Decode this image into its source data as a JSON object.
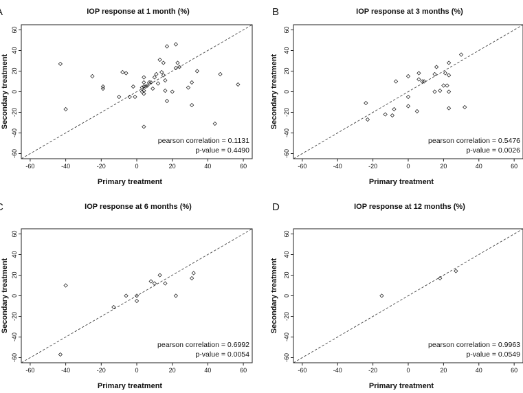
{
  "chart_data": [
    {
      "type": "scatter",
      "panel_label": "A",
      "title": "IOP response at 1 month (%)",
      "xlabel": "Primary treatment",
      "ylabel": "Secondary treatment",
      "xlim": [
        -65,
        65
      ],
      "ylim": [
        -65,
        65
      ],
      "xticks": [
        "-60",
        "-40",
        "-20",
        "0",
        "20",
        "40",
        "60"
      ],
      "yticks": [
        "-60",
        "-40",
        "-20",
        "0",
        "20",
        "40",
        "60"
      ],
      "reference_line": "identity (y = x), dashed",
      "annotation": [
        "pearson correlation = 0.1131",
        "p-value = 0.4490"
      ],
      "points": [
        [
          -43,
          27
        ],
        [
          -40,
          -17
        ],
        [
          -25,
          15
        ],
        [
          -19,
          5
        ],
        [
          -19,
          3
        ],
        [
          -10,
          -5
        ],
        [
          -8,
          19
        ],
        [
          -6,
          18
        ],
        [
          -4,
          -5
        ],
        [
          -2,
          5
        ],
        [
          -1,
          -5
        ],
        [
          3,
          4
        ],
        [
          3,
          0
        ],
        [
          4,
          14
        ],
        [
          4,
          9
        ],
        [
          4,
          5
        ],
        [
          4,
          1
        ],
        [
          4,
          -2
        ],
        [
          4,
          -34
        ],
        [
          5,
          5
        ],
        [
          6,
          6
        ],
        [
          7,
          9
        ],
        [
          8,
          9
        ],
        [
          9,
          3
        ],
        [
          10,
          14
        ],
        [
          11,
          17
        ],
        [
          12,
          8
        ],
        [
          13,
          31
        ],
        [
          14,
          19
        ],
        [
          15,
          28
        ],
        [
          15,
          16
        ],
        [
          16,
          11
        ],
        [
          16,
          1
        ],
        [
          17,
          -9
        ],
        [
          17,
          44
        ],
        [
          20,
          0
        ],
        [
          22,
          46
        ],
        [
          22,
          23
        ],
        [
          23,
          28
        ],
        [
          24,
          24
        ],
        [
          29,
          4
        ],
        [
          31,
          9
        ],
        [
          31,
          -13
        ],
        [
          34,
          20
        ],
        [
          44,
          -31
        ],
        [
          47,
          17
        ],
        [
          57,
          7
        ]
      ]
    },
    {
      "type": "scatter",
      "panel_label": "B",
      "title": "IOP response at 3 months (%)",
      "xlabel": "Primary treatment",
      "ylabel": "Secondary treatment",
      "xlim": [
        -65,
        65
      ],
      "ylim": [
        -65,
        65
      ],
      "xticks": [
        "-60",
        "-40",
        "-20",
        "0",
        "20",
        "40",
        "60"
      ],
      "yticks": [
        "-60",
        "-40",
        "-20",
        "0",
        "20",
        "40",
        "60"
      ],
      "reference_line": "identity (y = x), dashed",
      "annotation": [
        "pearson correlation = 0.5476",
        "p-value = 0.0026"
      ],
      "points": [
        [
          -24,
          -11
        ],
        [
          -23,
          -27
        ],
        [
          -13,
          -22
        ],
        [
          -9,
          -23
        ],
        [
          -8,
          -17
        ],
        [
          -7,
          10
        ],
        [
          0,
          15
        ],
        [
          0,
          -5
        ],
        [
          0,
          -14
        ],
        [
          5,
          -19
        ],
        [
          6,
          18
        ],
        [
          6,
          12
        ],
        [
          8,
          10
        ],
        [
          9,
          10
        ],
        [
          15,
          0
        ],
        [
          15,
          17
        ],
        [
          16,
          24
        ],
        [
          18,
          1
        ],
        [
          20,
          6
        ],
        [
          21,
          18
        ],
        [
          22,
          6
        ],
        [
          23,
          16
        ],
        [
          23,
          28
        ],
        [
          23,
          0
        ],
        [
          23,
          -16
        ],
        [
          30,
          36
        ],
        [
          32,
          -15
        ]
      ]
    },
    {
      "type": "scatter",
      "panel_label": "C",
      "title": "IOP response at 6 months (%)",
      "xlabel": "Primary treatment",
      "ylabel": "Secondary treatment",
      "xlim": [
        -65,
        65
      ],
      "ylim": [
        -65,
        65
      ],
      "xticks": [
        "-60",
        "-40",
        "-20",
        "0",
        "20",
        "40",
        "60"
      ],
      "yticks": [
        "-60",
        "-40",
        "-20",
        "0",
        "20",
        "40",
        "60"
      ],
      "reference_line": "identity (y = x), dashed",
      "annotation": [
        "pearson correlation = 0.6992",
        "p-value = 0.0054"
      ],
      "points": [
        [
          -43,
          -57
        ],
        [
          -40,
          10
        ],
        [
          -13,
          -11
        ],
        [
          -6,
          0
        ],
        [
          0,
          0
        ],
        [
          0,
          -5
        ],
        [
          8,
          14
        ],
        [
          10,
          12
        ],
        [
          13,
          20
        ],
        [
          16,
          12
        ],
        [
          22,
          0
        ],
        [
          31,
          17
        ],
        [
          32,
          22
        ]
      ]
    },
    {
      "type": "scatter",
      "panel_label": "D",
      "title": "IOP response at 12 months (%)",
      "xlabel": "Primary treatment",
      "ylabel": "Secondary treatment",
      "xlim": [
        -65,
        65
      ],
      "ylim": [
        -65,
        65
      ],
      "xticks": [
        "-60",
        "-40",
        "-20",
        "0",
        "20",
        "40",
        "60"
      ],
      "yticks": [
        "-60",
        "-40",
        "-20",
        "0",
        "20",
        "40",
        "60"
      ],
      "reference_line": "identity (y = x), dashed",
      "annotation": [
        "pearson correlation = 0.9963",
        "p-value = 0.0549"
      ],
      "points": [
        [
          -15,
          0
        ],
        [
          18,
          17
        ],
        [
          27,
          24
        ]
      ]
    }
  ]
}
